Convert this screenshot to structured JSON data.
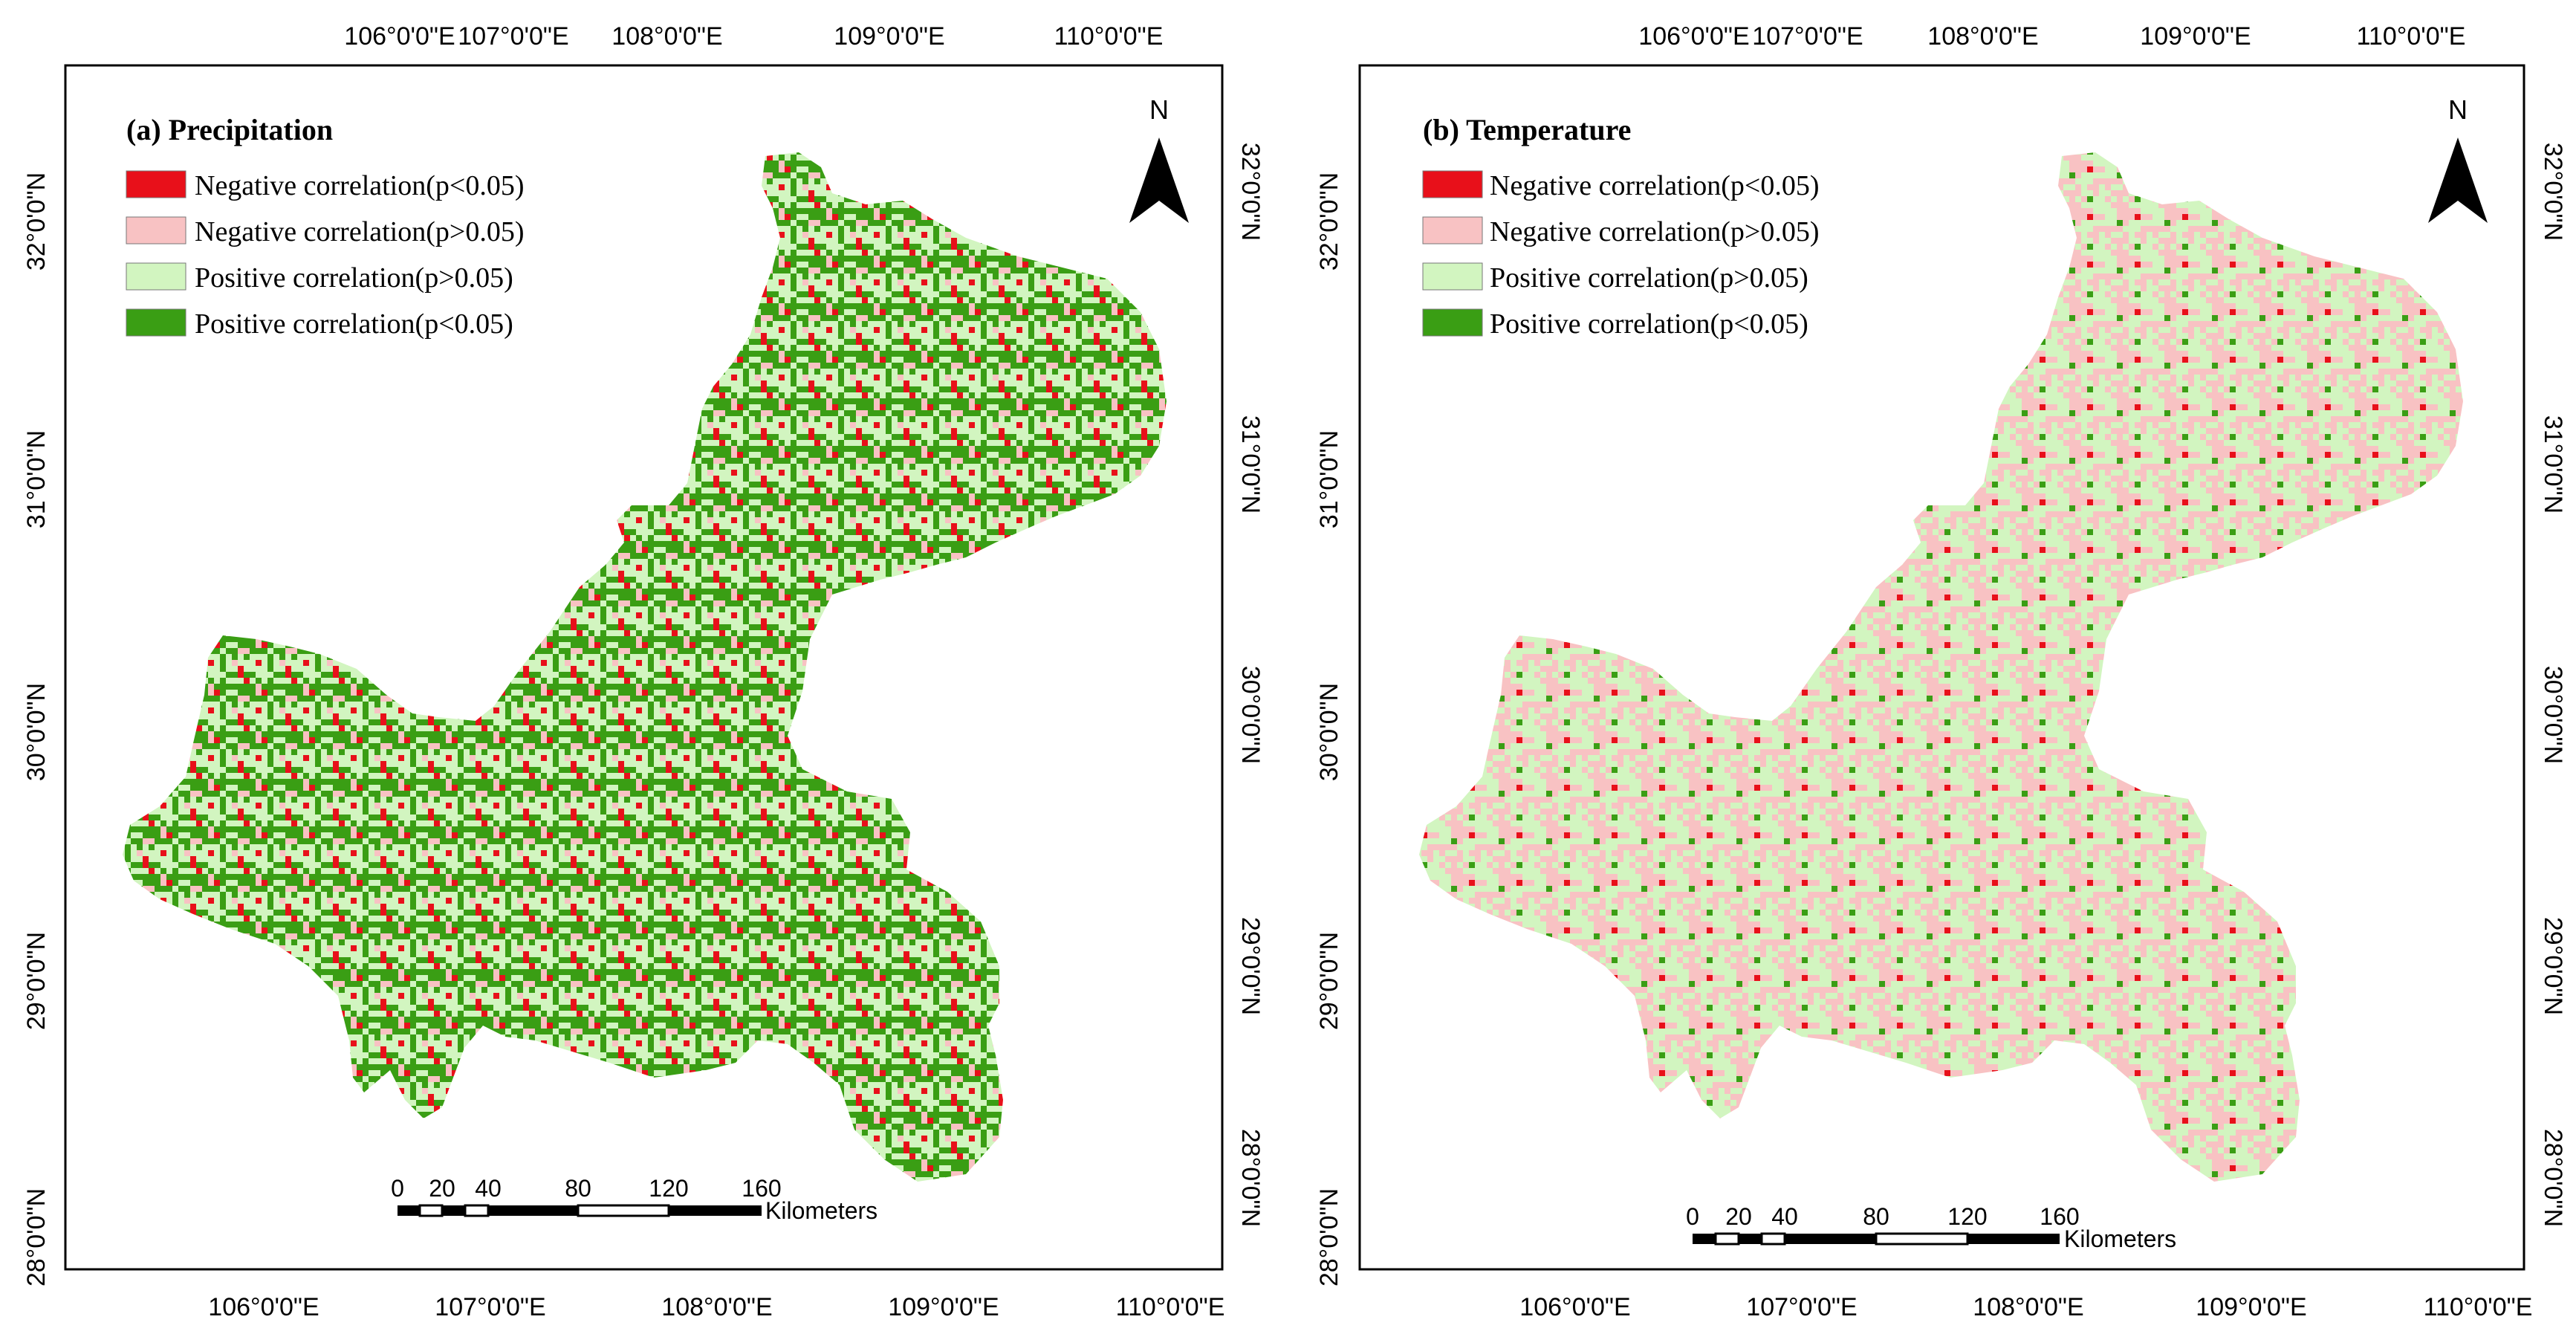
{
  "colors": {
    "neg_sig": "#e8101a",
    "neg_nonsig": "#f8c2c3",
    "pos_nonsig": "#d2f5c0",
    "pos_sig": "#3a9e14",
    "frame": "#000000",
    "background": "#ffffff"
  },
  "legend_items": [
    {
      "label": "Negative correlation(p<0.05)",
      "color_key": "neg_sig"
    },
    {
      "label": "Negative correlation(p>0.05)",
      "color_key": "neg_nonsig"
    },
    {
      "label": "Positive correlation(p>0.05)",
      "color_key": "pos_nonsig"
    },
    {
      "label": "Positive correlation(p<0.05)",
      "color_key": "pos_sig"
    }
  ],
  "panels": [
    {
      "id": "a",
      "title": "(a) Precipitation",
      "class_mix": {
        "neg_sig": 0.04,
        "neg_nonsig": 0.12,
        "pos_nonsig": 0.44,
        "pos_sig": 0.4
      }
    },
    {
      "id": "b",
      "title": "(b) Temperature",
      "class_mix": {
        "neg_sig": 0.03,
        "neg_nonsig": 0.47,
        "pos_nonsig": 0.43,
        "pos_sig": 0.07
      }
    }
  ],
  "lon_labels": [
    "106°0'0\"E",
    "107°0'0\"E",
    "108°0'0\"E",
    "109°0'0\"E",
    "110°0'0\"E"
  ],
  "lat_labels": [
    "28°0'0\"N",
    "29°0'0\"N",
    "30°0'0\"N",
    "31°0'0\"N",
    "32°0'0\"N"
  ],
  "north_arrow_label": "N",
  "scale_bar": {
    "ticks": [
      "0",
      "20",
      "40",
      "80",
      "120",
      "160"
    ],
    "unit": "Kilometers"
  }
}
